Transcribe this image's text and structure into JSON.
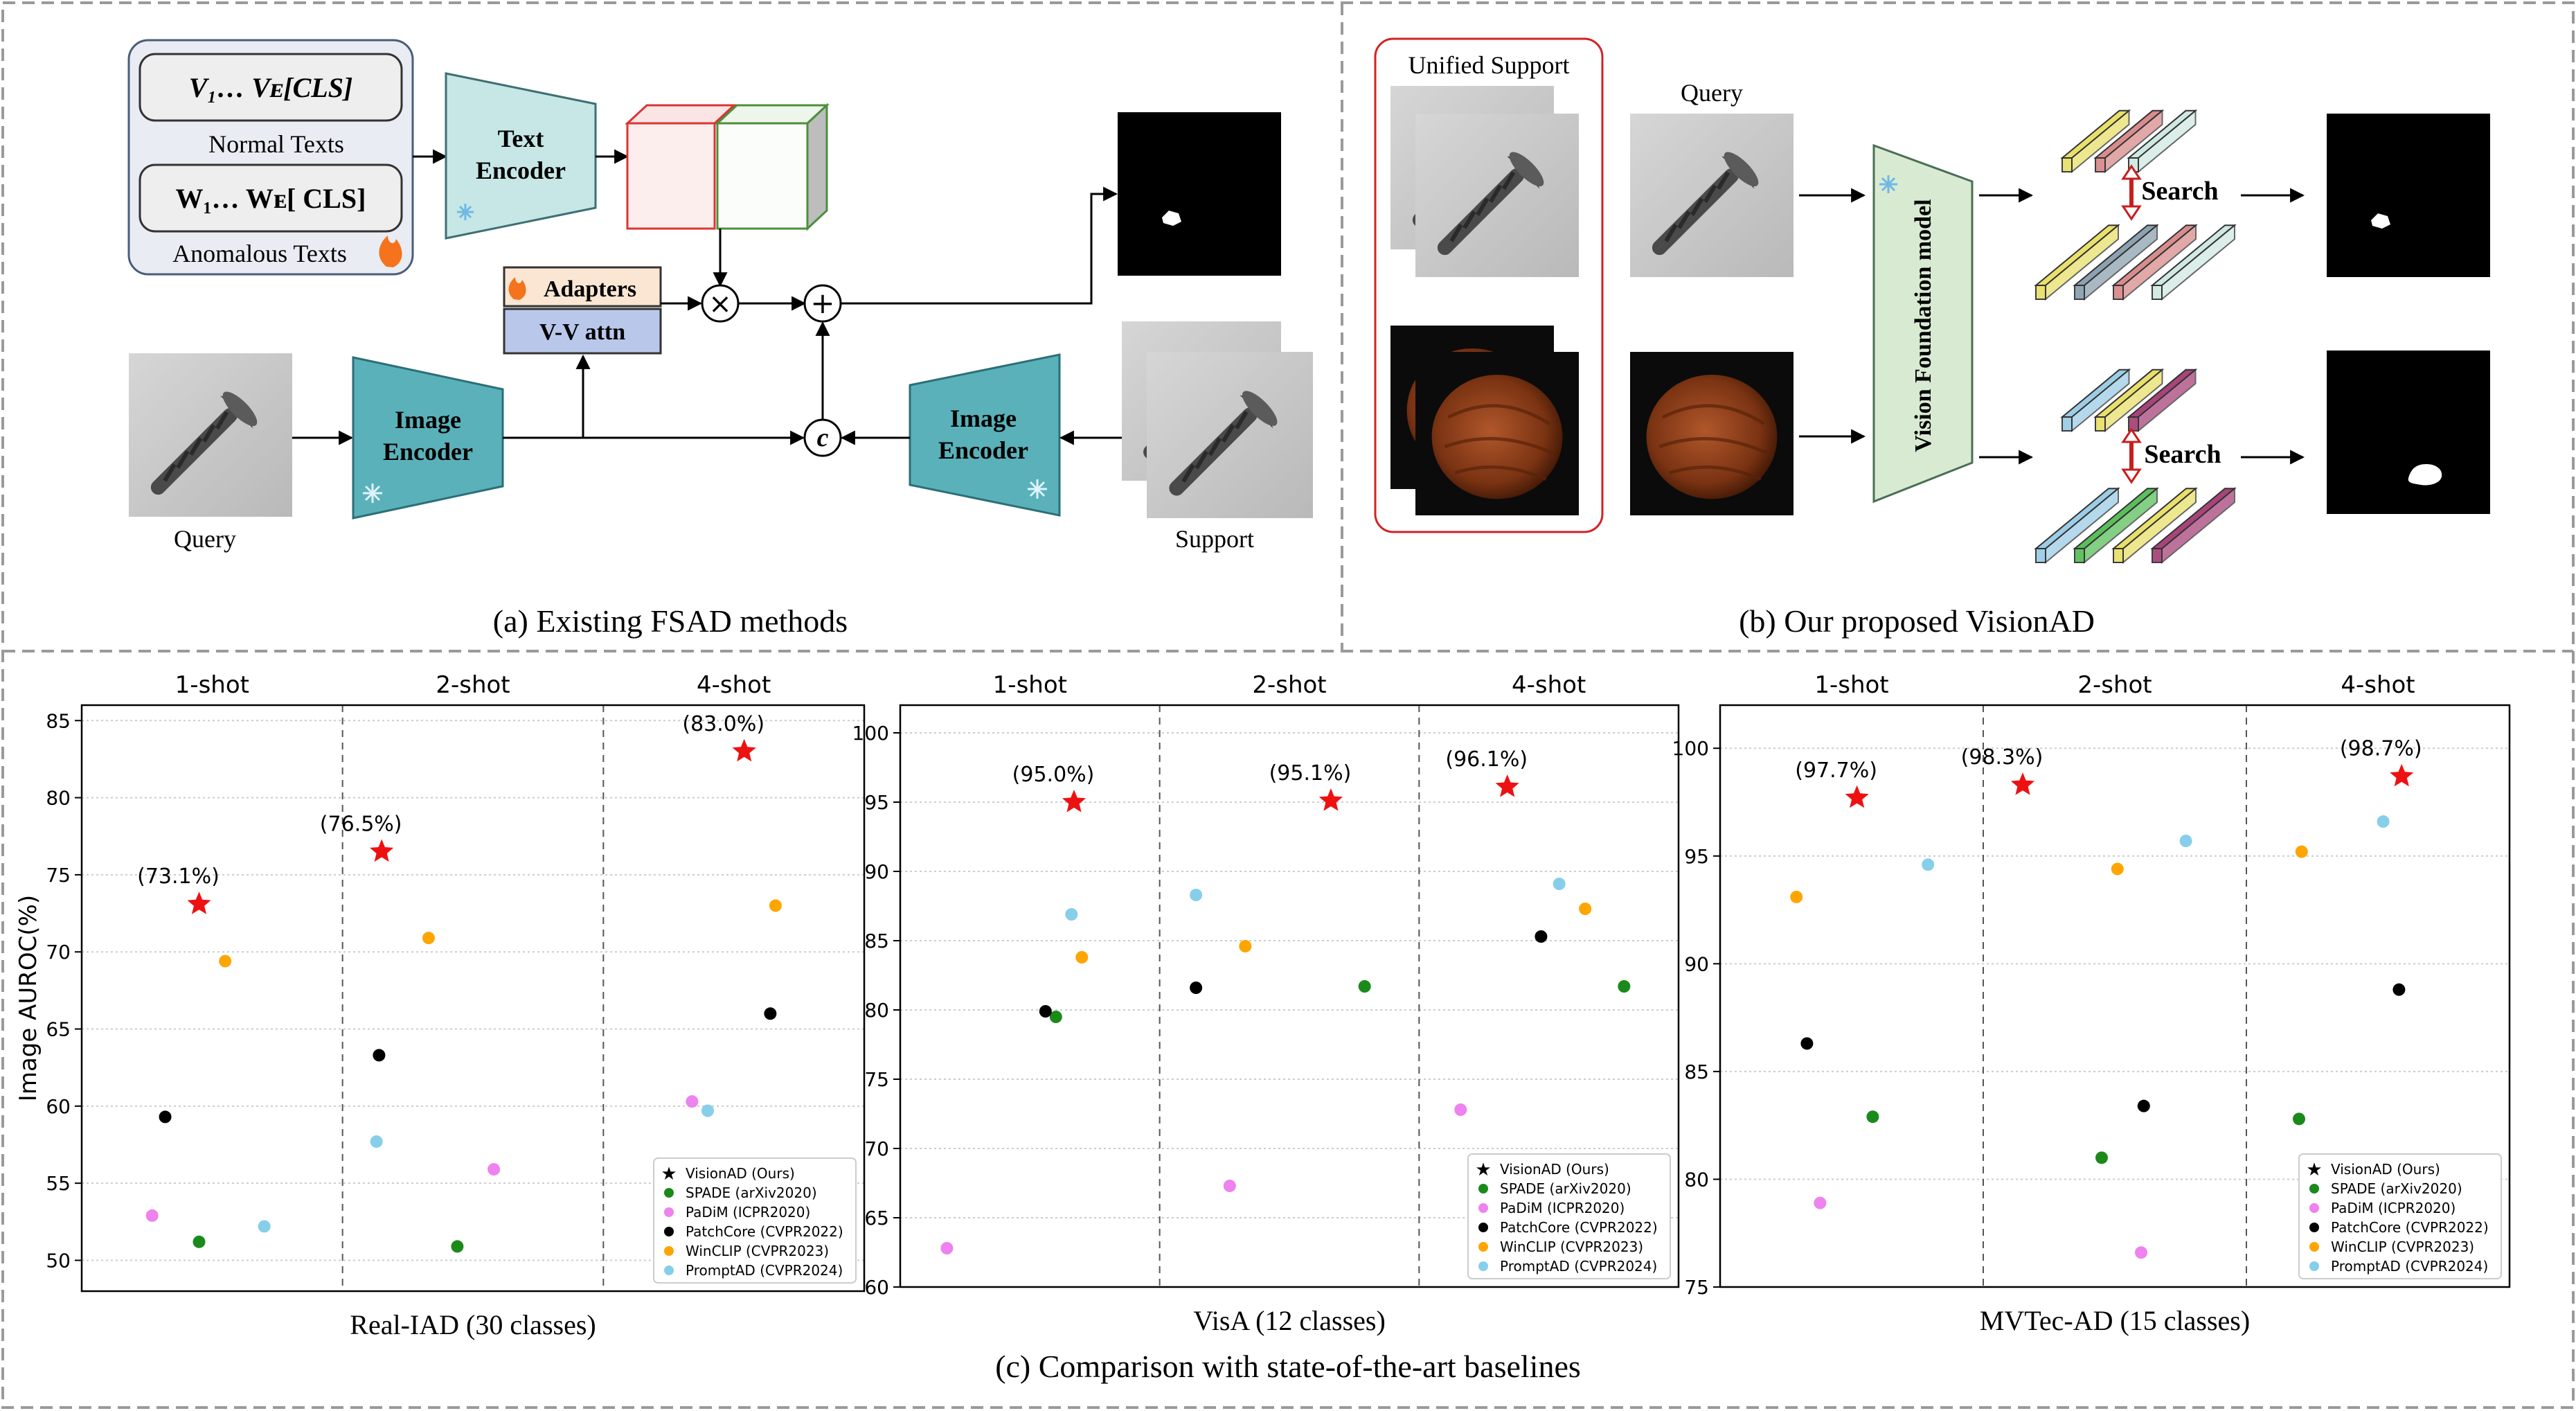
{
  "panel_a": {
    "caption": "(a) Existing FSAD methods",
    "normal_prompt": "V₁… Vᴇ[CLS]",
    "normal_caption": "Normal Texts",
    "anomalous_prompt": "W₁… Wᴇ[ CLS]",
    "anomalous_caption": "Anomalous Texts",
    "text_encoder": [
      "Text",
      "Encoder"
    ],
    "image_encoder": [
      "Image",
      "Encoder"
    ],
    "adapters": "Adapters",
    "vv_attn": "V-V attn",
    "op_multiply": "×",
    "op_add": "+",
    "op_concat": "c",
    "query_label": "Query",
    "support_label": "Support"
  },
  "panel_b": {
    "caption": "(b) Our proposed VisionAD",
    "unified_support": "Unified Support",
    "query_label": "Query",
    "vfm": "Vision Foundation model",
    "search": "Search"
  },
  "panel_c": {
    "caption": "(c) Comparison with state-of-the-art baselines",
    "colors": {
      "VisionAD (Ours)": "#ee1111",
      "SPADE (arXiv2020)": "#1a8a1a",
      "PaDiM (ICPR2020)": "#ee82ee",
      "PatchCore (CVPR2022)": "#000000",
      "WinCLIP (CVPR2023)": "#ffa500",
      "PromptAD (CVPR2024)": "#87ceeb"
    }
  },
  "chart_data": [
    {
      "type": "scatter",
      "title": "Real-IAD (30 classes)",
      "ylabel": "Image AUROC(%)",
      "groups": [
        "1-shot",
        "2-shot",
        "4-shot"
      ],
      "ylim": [
        48,
        86
      ],
      "yticks": [
        50,
        55,
        60,
        65,
        70,
        75,
        80,
        85
      ],
      "grid": true,
      "legend": "bottom-right",
      "series": [
        {
          "name": "VisionAD (Ours)",
          "values": [
            73.1,
            76.5,
            83.0
          ],
          "labels": [
            "(73.1%)",
            "(76.5%)",
            "(83.0%)"
          ]
        },
        {
          "name": "SPADE (arXiv2020)",
          "values": [
            51.2,
            50.9,
            null
          ]
        },
        {
          "name": "PaDiM (ICPR2020)",
          "values": [
            52.9,
            55.9,
            60.3
          ]
        },
        {
          "name": "PatchCore (CVPR2022)",
          "values": [
            59.3,
            63.3,
            66.0
          ]
        },
        {
          "name": "WinCLIP (CVPR2023)",
          "values": [
            69.4,
            70.9,
            73.0
          ]
        },
        {
          "name": "PromptAD (CVPR2024)",
          "values": [
            52.2,
            57.7,
            59.7
          ]
        }
      ]
    },
    {
      "type": "scatter",
      "title": "VisA (12 classes)",
      "ylabel": "",
      "groups": [
        "1-shot",
        "2-shot",
        "4-shot"
      ],
      "ylim": [
        60,
        102
      ],
      "yticks": [
        60,
        65,
        70,
        75,
        80,
        85,
        90,
        95,
        100
      ],
      "grid": true,
      "legend": "bottom-right",
      "series": [
        {
          "name": "VisionAD (Ours)",
          "values": [
            95.0,
            95.1,
            96.1
          ],
          "labels": [
            "(95.0%)",
            "(95.1%)",
            "(96.1%)"
          ]
        },
        {
          "name": "SPADE (arXiv2020)",
          "values": [
            79.5,
            81.7,
            81.7
          ]
        },
        {
          "name": "PaDiM (ICPR2020)",
          "values": [
            62.8,
            67.3,
            72.8
          ]
        },
        {
          "name": "PatchCore (CVPR2022)",
          "values": [
            79.9,
            81.6,
            85.3
          ]
        },
        {
          "name": "WinCLIP (CVPR2023)",
          "values": [
            83.8,
            84.6,
            87.3
          ]
        },
        {
          "name": "PromptAD (CVPR2024)",
          "values": [
            86.9,
            88.3,
            89.1
          ]
        }
      ]
    },
    {
      "type": "scatter",
      "title": "MVTec-AD (15 classes)",
      "ylabel": "",
      "groups": [
        "1-shot",
        "2-shot",
        "4-shot"
      ],
      "ylim": [
        75,
        102
      ],
      "yticks": [
        75,
        80,
        85,
        90,
        95,
        100
      ],
      "grid": true,
      "legend": "bottom-right",
      "series": [
        {
          "name": "VisionAD (Ours)",
          "values": [
            97.7,
            98.3,
            98.7
          ],
          "labels": [
            "(97.7%)",
            "(98.3%)",
            "(98.7%)"
          ]
        },
        {
          "name": "SPADE (arXiv2020)",
          "values": [
            82.9,
            81.0,
            82.8
          ]
        },
        {
          "name": "PaDiM (ICPR2020)",
          "values": [
            78.9,
            76.6,
            null
          ]
        },
        {
          "name": "PatchCore (CVPR2022)",
          "values": [
            86.3,
            83.4,
            88.8
          ]
        },
        {
          "name": "WinCLIP (CVPR2023)",
          "values": [
            93.1,
            94.4,
            95.2
          ]
        },
        {
          "name": "PromptAD (CVPR2024)",
          "values": [
            94.6,
            95.7,
            96.6
          ]
        }
      ]
    }
  ]
}
